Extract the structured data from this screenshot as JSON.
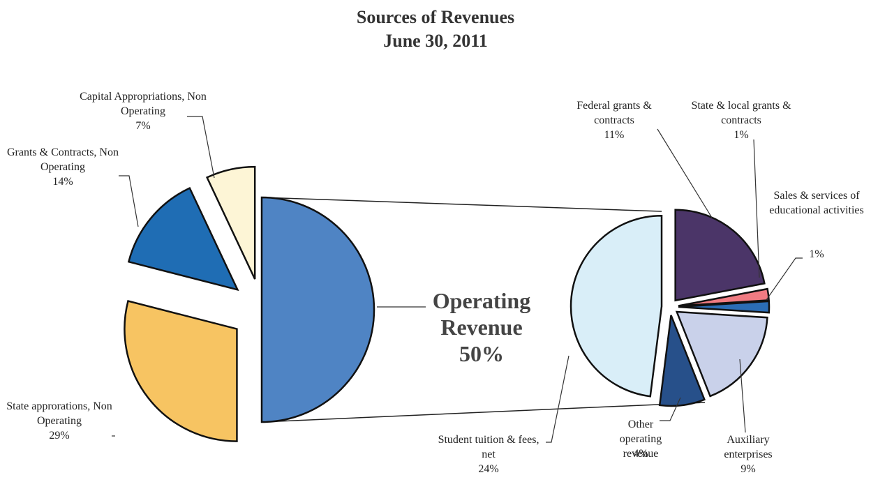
{
  "chart_data": {
    "type": "pie-of-pie",
    "title": "Sources of Revenues",
    "subtitle": "June 30, 2011",
    "categories": [
      "Operating Revenue",
      "State approrations, Non Operating",
      "Grants & Contracts, Non Operating",
      "Capital Appropriations, Non Operating"
    ],
    "values": [
      50,
      29,
      14,
      7
    ],
    "value_labels": [
      "50%",
      "29%",
      "14%",
      "7%"
    ],
    "colors": [
      "#4f84c4",
      "#f7c462",
      "#1f6db4",
      "#fdf5d6"
    ],
    "breakdown": {
      "categories": [
        "Federal grants & contracts",
        "State & local grants & contracts",
        "Sales & services of educational activities",
        "Auxiliary enterprises",
        "Other operating revenue",
        "Student tuition & fees, net"
      ],
      "values": [
        11,
        1,
        1,
        9,
        4,
        24
      ],
      "value_labels": [
        "11%",
        "1%",
        "1%",
        "9%",
        "4%",
        "24%"
      ],
      "colors": [
        "#4b3568",
        "#f07b82",
        "#2b6db5",
        "#c9d1ea",
        "#27508a",
        "#d9eef8"
      ]
    }
  }
}
